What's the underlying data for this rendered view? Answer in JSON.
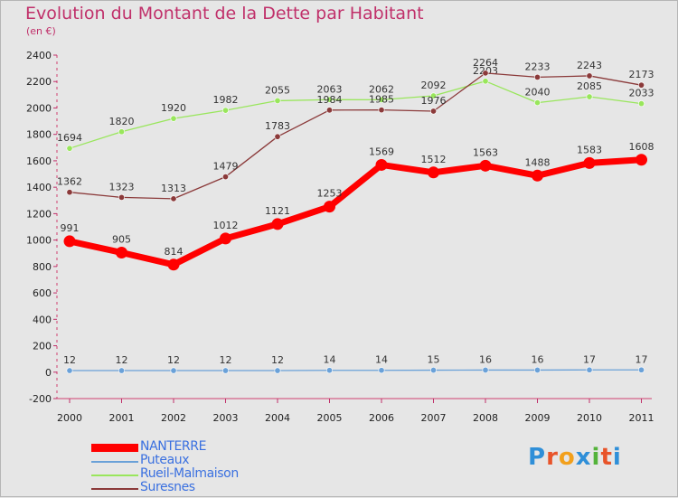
{
  "title": "Evolution du Montant de la Dette par Habitant",
  "subtitle": "(en €)",
  "chart_data": {
    "type": "line",
    "x": [
      "2000",
      "2001",
      "2002",
      "2003",
      "2004",
      "2005",
      "2006",
      "2007",
      "2008",
      "2009",
      "2010",
      "2011"
    ],
    "ylim": [
      -200,
      2400
    ],
    "yticks": [
      -200,
      0,
      200,
      400,
      600,
      800,
      1000,
      1200,
      1400,
      1600,
      1800,
      2000,
      2200,
      2400
    ],
    "grid": false,
    "legend_position": "bottom-left",
    "series": [
      {
        "name": "NANTERRE",
        "color": "#ff0000",
        "values": [
          991,
          905,
          814,
          1012,
          1121,
          1253,
          1569,
          1512,
          1563,
          1488,
          1583,
          1608
        ]
      },
      {
        "name": "Puteaux",
        "color": "#6aa1d8",
        "values": [
          12,
          12,
          12,
          12,
          12,
          14,
          14,
          15,
          16,
          16,
          17,
          17
        ]
      },
      {
        "name": "Rueil-Malmaison",
        "color": "#99e65c",
        "values": [
          1694,
          1820,
          1920,
          1982,
          2055,
          2063,
          2062,
          2092,
          2203,
          2040,
          2085,
          2033
        ]
      },
      {
        "name": "Suresnes",
        "color": "#8b3a3a",
        "values": [
          1362,
          1323,
          1313,
          1479,
          1783,
          1984,
          1985,
          1976,
          2264,
          2233,
          2243,
          2173
        ]
      }
    ]
  },
  "legend": {
    "items": [
      {
        "label": "NANTERRE"
      },
      {
        "label": "Puteaux"
      },
      {
        "label": "Rueil-Malmaison"
      },
      {
        "label": "Suresnes"
      }
    ]
  },
  "logo": {
    "text": "Proxiti",
    "letters": [
      "P",
      "r",
      "o",
      "x",
      "i",
      "t",
      "i"
    ],
    "colors": [
      "#2f8fd8",
      "#e8542a",
      "#f2a01c",
      "#2f8fd8",
      "#54b33a",
      "#e8542a",
      "#2f8fd8"
    ]
  }
}
